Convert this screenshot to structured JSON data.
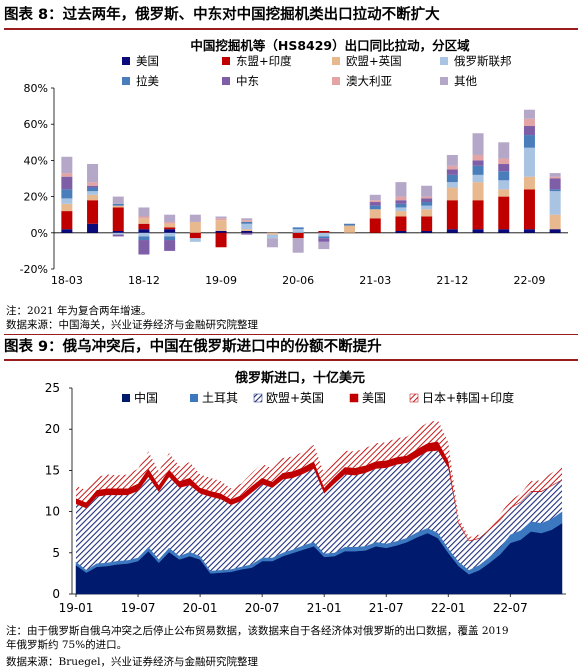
{
  "fig8": {
    "caption": "图表 8：过去两年，俄罗斯、中东对中国挖掘机类出口拉动不断扩大",
    "note": "注：2021 年为复合两年增速。",
    "source": "数据来源：中国海关，兴业证券经济与金融研究院整理"
  },
  "fig9": {
    "caption": "图表 9：俄乌冲突后，中国在俄罗斯进口中的份额不断提升",
    "note1": "注：由于俄罗斯自俄乌冲突之后停止公布贸易数据，该数据来自于各经济体对俄罗斯的出口数据，覆盖 2019",
    "note2": "年俄罗斯约 75%的进口。",
    "source": "数据来源：Bruegel，兴业证券经济与金融研究院整理"
  },
  "colors": {
    "brand_red": "#9b1c1c",
    "us": "#0a0a7a",
    "asean_india": "#c00000",
    "eu_uk": "#e8b88f",
    "russia": "#a9c4e3",
    "latam": "#4a7ebb",
    "middle_east": "#7f5ea8",
    "australia": "#e2a4a4",
    "other": "#b5a7c8",
    "china": "#001a6e",
    "turkey": "#3c78c0",
    "hatch_blue": "#1f2d7a",
    "hatch_red": "#c00000"
  },
  "chart_data": [
    {
      "type": "bar",
      "stacked": true,
      "title": "中国挖掘机等（HS8429）出口同比拉动，分区域",
      "xlabel": "",
      "ylabel": "",
      "ylim": [
        -0.2,
        0.8
      ],
      "yticks": [
        "-20%",
        "0%",
        "20%",
        "40%",
        "60%",
        "80%"
      ],
      "xtick_labels": [
        "18-03",
        "18-12",
        "19-09",
        "20-06",
        "21-03",
        "21-12",
        "22-09"
      ],
      "categories": [
        "18-03",
        "18-06",
        "18-09",
        "18-12",
        "19-03",
        "19-06",
        "19-09",
        "19-12",
        "20-03",
        "20-06",
        "20-09",
        "20-12",
        "21-03",
        "21-06",
        "21-09",
        "21-12",
        "22-03",
        "22-06",
        "22-09",
        "22-12"
      ],
      "legend_position": "top",
      "series": [
        {
          "name": "美国",
          "values": [
            0.02,
            0.05,
            0.01,
            0.02,
            0.02,
            0.0,
            0.01,
            0.01,
            0.0,
            0.0,
            0.0,
            0.0,
            0.0,
            0.01,
            0.01,
            0.02,
            0.02,
            0.02,
            0.02,
            0.02
          ]
        },
        {
          "name": "东盟+印度",
          "values": [
            0.1,
            0.13,
            0.13,
            0.03,
            0.01,
            -0.03,
            -0.08,
            0.0,
            0.0,
            -0.03,
            0.01,
            0.0,
            0.08,
            0.08,
            0.08,
            0.16,
            0.16,
            0.18,
            0.22,
            0.0
          ]
        },
        {
          "name": "欧盟+英国",
          "values": [
            0.04,
            0.03,
            0.01,
            0.03,
            0.02,
            0.06,
            0.06,
            0.01,
            -0.01,
            0.0,
            0.0,
            0.04,
            0.05,
            0.03,
            0.04,
            0.07,
            0.1,
            0.04,
            0.07,
            0.08
          ]
        },
        {
          "name": "俄罗斯联邦",
          "values": [
            0.03,
            0.02,
            -0.01,
            -0.02,
            -0.02,
            -0.02,
            0.0,
            0.03,
            -0.02,
            0.02,
            -0.02,
            0.0,
            0.0,
            0.02,
            0.02,
            0.03,
            0.04,
            0.05,
            0.16,
            0.13
          ]
        },
        {
          "name": "拉美",
          "values": [
            0.05,
            0.02,
            0.01,
            -0.02,
            -0.02,
            0.0,
            0.0,
            0.01,
            0.0,
            0.01,
            -0.01,
            0.01,
            0.02,
            0.02,
            0.02,
            0.04,
            0.05,
            0.05,
            0.07,
            0.01
          ]
        },
        {
          "name": "中东",
          "values": [
            0.07,
            0.01,
            -0.01,
            -0.08,
            -0.06,
            0.0,
            0.0,
            -0.01,
            0.0,
            0.0,
            -0.02,
            0.0,
            0.02,
            0.02,
            0.02,
            0.03,
            0.03,
            0.04,
            0.05,
            0.06
          ]
        },
        {
          "name": "澳大利亚",
          "values": [
            0.02,
            0.02,
            0.0,
            0.01,
            0.01,
            0.0,
            0.01,
            0.01,
            0.0,
            0.0,
            0.0,
            0.0,
            0.01,
            0.02,
            0.01,
            0.02,
            0.03,
            0.03,
            0.04,
            0.01
          ]
        },
        {
          "name": "其他",
          "values": [
            0.09,
            0.1,
            0.04,
            0.05,
            0.04,
            0.04,
            0.01,
            0.01,
            -0.05,
            -0.08,
            -0.04,
            0.0,
            0.03,
            0.08,
            0.06,
            0.06,
            0.12,
            0.09,
            0.05,
            0.02
          ]
        }
      ]
    },
    {
      "type": "area",
      "stacked": true,
      "title": "俄罗斯进口，十亿美元",
      "xlabel": "",
      "ylabel": "",
      "ylim": [
        0,
        25
      ],
      "yticks": [
        "0",
        "5",
        "10",
        "15",
        "20",
        "25"
      ],
      "xtick_labels": [
        "19-01",
        "19-07",
        "20-01",
        "20-07",
        "21-01",
        "21-07",
        "22-01",
        "22-07"
      ],
      "x": [
        "19-01",
        "19-02",
        "19-03",
        "19-04",
        "19-05",
        "19-06",
        "19-07",
        "19-08",
        "19-09",
        "19-10",
        "19-11",
        "19-12",
        "20-01",
        "20-02",
        "20-03",
        "20-04",
        "20-05",
        "20-06",
        "20-07",
        "20-08",
        "20-09",
        "20-10",
        "20-11",
        "20-12",
        "21-01",
        "21-02",
        "21-03",
        "21-04",
        "21-05",
        "21-06",
        "21-07",
        "21-08",
        "21-09",
        "21-10",
        "21-11",
        "21-12",
        "22-01",
        "22-02",
        "22-03",
        "22-04",
        "22-05",
        "22-06",
        "22-07",
        "22-08",
        "22-09",
        "22-10",
        "22-11",
        "22-12"
      ],
      "legend_position": "top",
      "series": [
        {
          "name": "中国",
          "values": [
            3.5,
            2.6,
            3.3,
            3.4,
            3.6,
            3.7,
            4.0,
            5.2,
            3.8,
            5.1,
            4.2,
            4.6,
            4.2,
            2.5,
            2.6,
            2.7,
            3.0,
            3.2,
            4.0,
            4.0,
            4.6,
            5.0,
            5.4,
            5.8,
            4.5,
            4.6,
            5.2,
            5.2,
            5.3,
            5.8,
            5.6,
            5.9,
            6.3,
            6.9,
            7.4,
            6.8,
            5.0,
            3.4,
            2.4,
            2.9,
            3.8,
            4.8,
            6.2,
            6.6,
            7.6,
            7.4,
            7.8,
            8.6
          ]
        },
        {
          "name": "土耳其",
          "values": [
            0.4,
            0.3,
            0.4,
            0.4,
            0.4,
            0.4,
            0.4,
            0.5,
            0.4,
            0.5,
            0.4,
            0.5,
            0.4,
            0.3,
            0.3,
            0.3,
            0.3,
            0.4,
            0.4,
            0.4,
            0.4,
            0.4,
            0.5,
            0.5,
            0.4,
            0.4,
            0.5,
            0.5,
            0.5,
            0.5,
            0.5,
            0.5,
            0.5,
            0.6,
            0.6,
            0.6,
            0.5,
            0.5,
            0.5,
            0.6,
            0.7,
            0.8,
            1.0,
            1.1,
            1.2,
            1.2,
            1.3,
            1.4
          ]
        },
        {
          "name": "欧盟+英国",
          "values": [
            7.0,
            7.5,
            8.1,
            8.2,
            8.0,
            7.9,
            8.1,
            8.5,
            8.2,
            8.6,
            8.3,
            8.1,
            7.6,
            9.0,
            8.6,
            7.8,
            8.0,
            8.7,
            8.9,
            8.5,
            8.9,
            8.7,
            8.7,
            8.9,
            7.3,
            8.4,
            8.8,
            8.7,
            8.9,
            8.9,
            9.2,
            9.3,
            9.1,
            9.1,
            9.3,
            10.0,
            9.8,
            4.6,
            3.5,
            3.2,
            3.3,
            3.3,
            3.2,
            3.4,
            3.6,
            3.8,
            4.0,
            3.8
          ]
        },
        {
          "name": "美国",
          "values": [
            0.7,
            0.7,
            0.8,
            0.8,
            0.8,
            0.8,
            0.9,
            1.0,
            0.8,
            0.9,
            0.8,
            0.9,
            0.7,
            0.7,
            0.7,
            0.7,
            0.7,
            0.8,
            0.8,
            0.7,
            0.8,
            0.8,
            0.8,
            0.9,
            0.7,
            0.8,
            0.9,
            0.9,
            0.9,
            0.9,
            0.9,
            0.9,
            0.9,
            1.0,
            1.0,
            1.1,
            0.9,
            0.2,
            0.1,
            0.1,
            0.1,
            0.1,
            0.1,
            0.1,
            0.1,
            0.1,
            0.1,
            0.1
          ]
        },
        {
          "name": "日本+韩国+印度",
          "values": [
            1.5,
            1.5,
            1.6,
            1.7,
            1.6,
            1.7,
            1.8,
            2.1,
            1.7,
            2.0,
            1.8,
            1.9,
            1.6,
            1.6,
            1.5,
            1.3,
            1.4,
            1.6,
            1.7,
            1.6,
            1.8,
            1.8,
            1.9,
            2.0,
            1.7,
            1.8,
            2.0,
            2.0,
            2.1,
            2.2,
            2.2,
            2.3,
            2.3,
            2.4,
            2.5,
            2.6,
            2.2,
            0.6,
            0.4,
            0.4,
            0.5,
            0.7,
            0.8,
            1.0,
            1.2,
            1.3,
            1.5,
            1.6
          ]
        }
      ]
    }
  ]
}
